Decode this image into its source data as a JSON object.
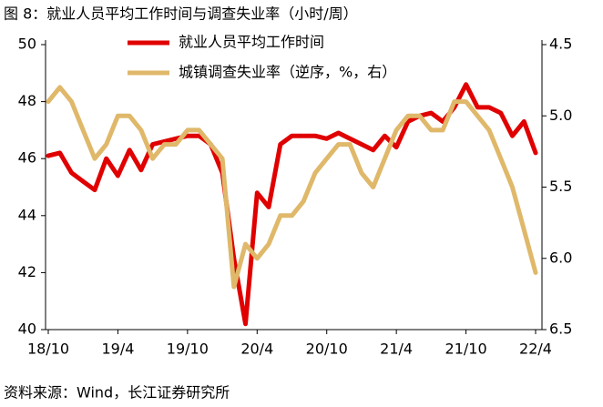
{
  "chart_data": {
    "type": "line",
    "title": "图 8：就业人员平均工作时间与调查失业率（小时/周）",
    "source": "资料来源：Wind，长江证券研究所",
    "categories": [
      "18/10",
      null,
      null,
      null,
      null,
      null,
      "19/4",
      null,
      null,
      null,
      null,
      null,
      "19/10",
      null,
      null,
      null,
      null,
      null,
      "20/4",
      null,
      null,
      null,
      null,
      null,
      "20/10",
      null,
      null,
      null,
      null,
      null,
      "21/4",
      null,
      null,
      null,
      null,
      null,
      "21/10",
      null,
      null,
      null,
      null,
      null,
      "22/4"
    ],
    "series": [
      {
        "name": "就业人员平均工作时间",
        "color": "#e00000",
        "values": [
          46.1,
          46.2,
          45.5,
          45.2,
          44.9,
          46.0,
          45.4,
          46.3,
          45.6,
          46.5,
          46.6,
          46.7,
          46.8,
          46.8,
          46.5,
          45.5,
          42.5,
          40.2,
          44.8,
          44.3,
          46.5,
          46.8,
          46.8,
          46.8,
          46.7,
          46.9,
          46.7,
          46.5,
          46.3,
          46.8,
          46.4,
          47.3,
          47.5,
          47.6,
          47.3,
          47.8,
          48.6,
          47.8,
          47.8,
          47.6,
          46.8,
          47.3,
          46.2
        ]
      },
      {
        "name": "城镇调查失业率（逆序，%，右）",
        "color": "#dfb86a",
        "axis": "y2",
        "values": [
          4.9,
          4.8,
          4.9,
          5.1,
          5.3,
          5.2,
          5.0,
          5.0,
          5.1,
          5.3,
          5.2,
          5.2,
          5.1,
          5.1,
          5.2,
          5.3,
          6.2,
          5.9,
          6.0,
          5.9,
          5.7,
          5.7,
          5.6,
          5.4,
          5.3,
          5.2,
          5.2,
          5.4,
          5.5,
          5.3,
          5.1,
          5.0,
          5.0,
          5.1,
          5.1,
          4.9,
          4.9,
          5.0,
          5.1,
          5.3,
          5.5,
          5.8,
          6.1
        ]
      }
    ],
    "ylim": [
      40,
      50
    ],
    "yticks": [
      40,
      42,
      44,
      46,
      48,
      50
    ],
    "y2lim": [
      4.5,
      6.5
    ],
    "y2_reversed": true,
    "y2ticks": [
      4.5,
      {
        "value": 5,
        "label": "5.0"
      },
      5.5,
      {
        "value": 6,
        "label": "6.0"
      },
      6.5
    ],
    "grid": false
  }
}
